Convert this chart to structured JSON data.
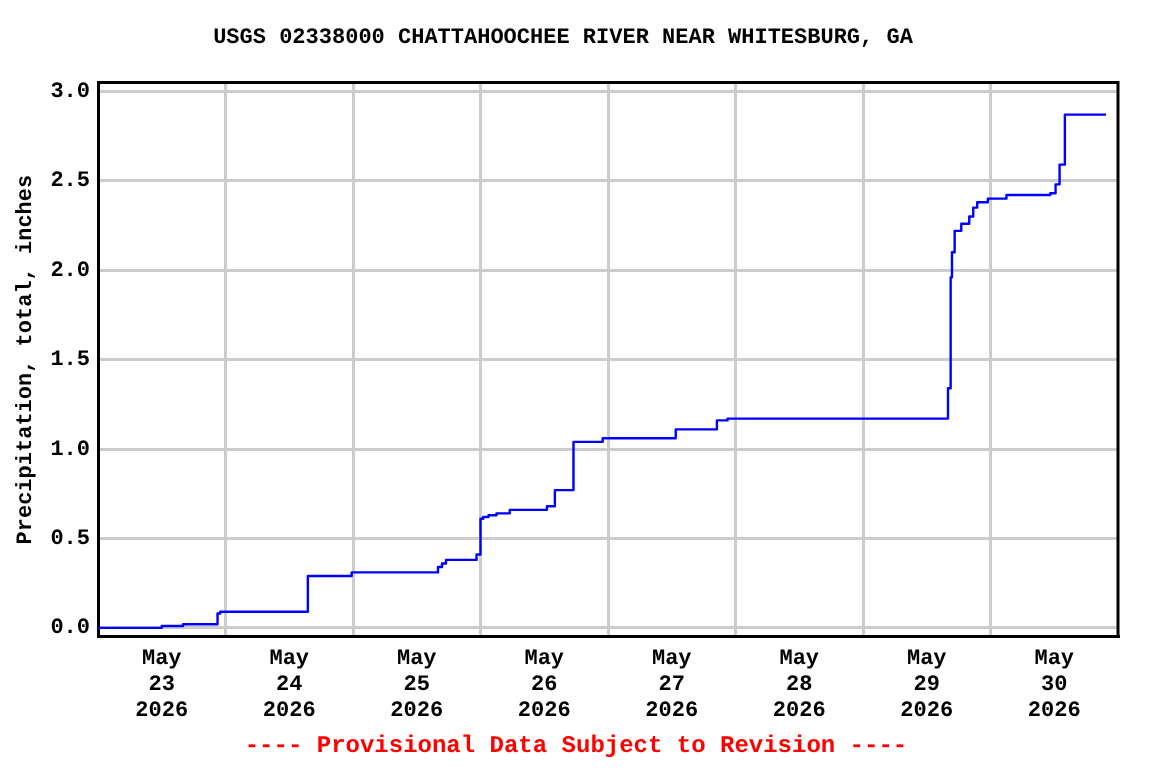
{
  "chart_data": {
    "type": "step",
    "title": "USGS 02338000 CHATTAHOOCHEE RIVER NEAR WHITESBURG, GA",
    "ylabel": "Precipitation, total, inches",
    "annotations": [
      "---- Provisional Data Subject to Revision ----"
    ],
    "x": [
      "2026-05-23T00:00",
      "2026-05-23T12:00",
      "2026-05-23T16:00",
      "2026-05-23T22:30",
      "2026-05-23T23:00",
      "2026-05-24T15:30",
      "2026-05-24T23:45",
      "2026-05-25T16:00",
      "2026-05-25T16:45",
      "2026-05-25T17:30",
      "2026-05-25T23:15",
      "2026-05-26T00:00",
      "2026-05-26T00:30",
      "2026-05-26T01:30",
      "2026-05-26T03:00",
      "2026-05-26T05:30",
      "2026-05-26T12:30",
      "2026-05-26T14:00",
      "2026-05-26T17:30",
      "2026-05-26T23:00",
      "2026-05-27T12:45",
      "2026-05-27T20:30",
      "2026-05-27T22:30",
      "2026-05-29T16:00",
      "2026-05-29T16:30",
      "2026-05-29T16:45",
      "2026-05-29T17:15",
      "2026-05-29T18:30",
      "2026-05-29T20:00",
      "2026-05-29T20:45",
      "2026-05-29T21:30",
      "2026-05-29T23:30",
      "2026-05-30T03:00",
      "2026-05-30T11:15",
      "2026-05-30T12:15",
      "2026-05-30T13:00",
      "2026-05-30T14:00",
      "2026-05-30T21:45"
    ],
    "series": [
      {
        "color": "#0000ff",
        "values": [
          0.0,
          0.01,
          0.02,
          0.08,
          0.09,
          0.29,
          0.31,
          0.34,
          0.36,
          0.38,
          0.41,
          0.61,
          0.62,
          0.63,
          0.64,
          0.66,
          0.68,
          0.77,
          1.04,
          1.06,
          1.11,
          1.16,
          1.17,
          1.34,
          1.96,
          2.1,
          2.22,
          2.26,
          2.3,
          2.35,
          2.38,
          2.4,
          2.42,
          2.43,
          2.48,
          2.59,
          2.87,
          2.87
        ]
      }
    ],
    "xlim": [
      "2026-05-23T00:00",
      "2026-05-31T00:00"
    ],
    "xticks": [
      {
        "value": "2026-05-23T12:00",
        "label": "May\n23\n2026"
      },
      {
        "value": "2026-05-24T00:00",
        "label": null
      },
      {
        "value": "2026-05-24T12:00",
        "label": "May\n24\n2026"
      },
      {
        "value": "2026-05-25T00:00",
        "label": null
      },
      {
        "value": "2026-05-25T12:00",
        "label": "May\n25\n2026"
      },
      {
        "value": "2026-05-26T00:00",
        "label": null
      },
      {
        "value": "2026-05-26T12:00",
        "label": "May\n26\n2026"
      },
      {
        "value": "2026-05-27T00:00",
        "label": null
      },
      {
        "value": "2026-05-27T12:00",
        "label": "May\n27\n2026"
      },
      {
        "value": "2026-05-28T00:00",
        "label": null
      },
      {
        "value": "2026-05-28T12:00",
        "label": "May\n28\n2026"
      },
      {
        "value": "2026-05-29T00:00",
        "label": null
      },
      {
        "value": "2026-05-29T12:00",
        "label": "May\n29\n2026"
      },
      {
        "value": "2026-05-30T00:00",
        "label": null
      },
      {
        "value": "2026-05-30T12:00",
        "label": "May\n30\n2026"
      }
    ],
    "ylim": [
      -0.05,
      3.05
    ],
    "yticks": [
      {
        "value": 0,
        "label": "0.0"
      },
      {
        "value": 0.5,
        "label": "0.5"
      },
      {
        "value": 1,
        "label": "1.0"
      },
      {
        "value": 1.5,
        "label": "1.5"
      },
      {
        "value": 2,
        "label": "2.0"
      },
      {
        "value": 2.5,
        "label": "2.5"
      },
      {
        "value": 3,
        "label": "3.0"
      }
    ],
    "grid": true,
    "legend": false,
    "marker": "none",
    "line_style": "solid"
  }
}
